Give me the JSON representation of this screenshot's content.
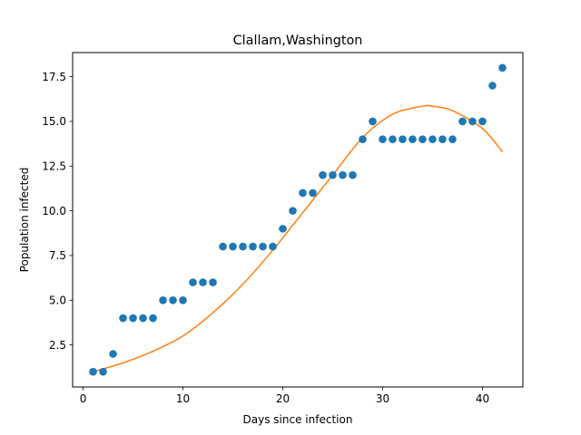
{
  "chart_data": {
    "type": "scatter",
    "title": "Clallam,Washington",
    "xlabel": "Days since infection",
    "ylabel": "Population infected",
    "xlim": [
      -1.05,
      44.05
    ],
    "ylim": [
      0.15,
      18.85
    ],
    "xticks": [
      0,
      10,
      20,
      30,
      40
    ],
    "xtick_labels": [
      "0",
      "10",
      "20",
      "30",
      "40"
    ],
    "yticks": [
      2.5,
      5.0,
      7.5,
      10.0,
      12.5,
      15.0,
      17.5
    ],
    "ytick_labels": [
      "2.5",
      "5.0",
      "7.5",
      "10.0",
      "12.5",
      "15.0",
      "17.5"
    ],
    "grid": false,
    "series": [
      {
        "kind": "scatter",
        "color": "#1f77b4",
        "x": [
          1,
          2,
          3,
          4,
          5,
          6,
          7,
          8,
          9,
          10,
          11,
          12,
          13,
          14,
          15,
          16,
          17,
          18,
          19,
          20,
          21,
          22,
          23,
          24,
          25,
          26,
          27,
          28,
          29,
          30,
          31,
          32,
          33,
          34,
          35,
          36,
          37,
          38,
          39,
          40,
          41,
          42
        ],
        "y": [
          1,
          1,
          2,
          4,
          4,
          4,
          4,
          5,
          5,
          5,
          6,
          6,
          6,
          8,
          8,
          8,
          8,
          8,
          8,
          9,
          10,
          11,
          11,
          12,
          12,
          12,
          12,
          14,
          15,
          14,
          14,
          14,
          14,
          14,
          14,
          14,
          14,
          15,
          15,
          15,
          17,
          18
        ]
      },
      {
        "kind": "line",
        "color": "#ff7f0e",
        "x": [
          1,
          4,
          7,
          10,
          13,
          16,
          19,
          22,
          25,
          28,
          31,
          34,
          35,
          37,
          40,
          42
        ],
        "y": [
          1.0,
          1.5,
          2.15,
          3.0,
          4.3,
          5.9,
          7.8,
          9.9,
          12.0,
          14.1,
          15.4,
          15.85,
          15.85,
          15.6,
          14.6,
          13.3
        ]
      }
    ]
  }
}
